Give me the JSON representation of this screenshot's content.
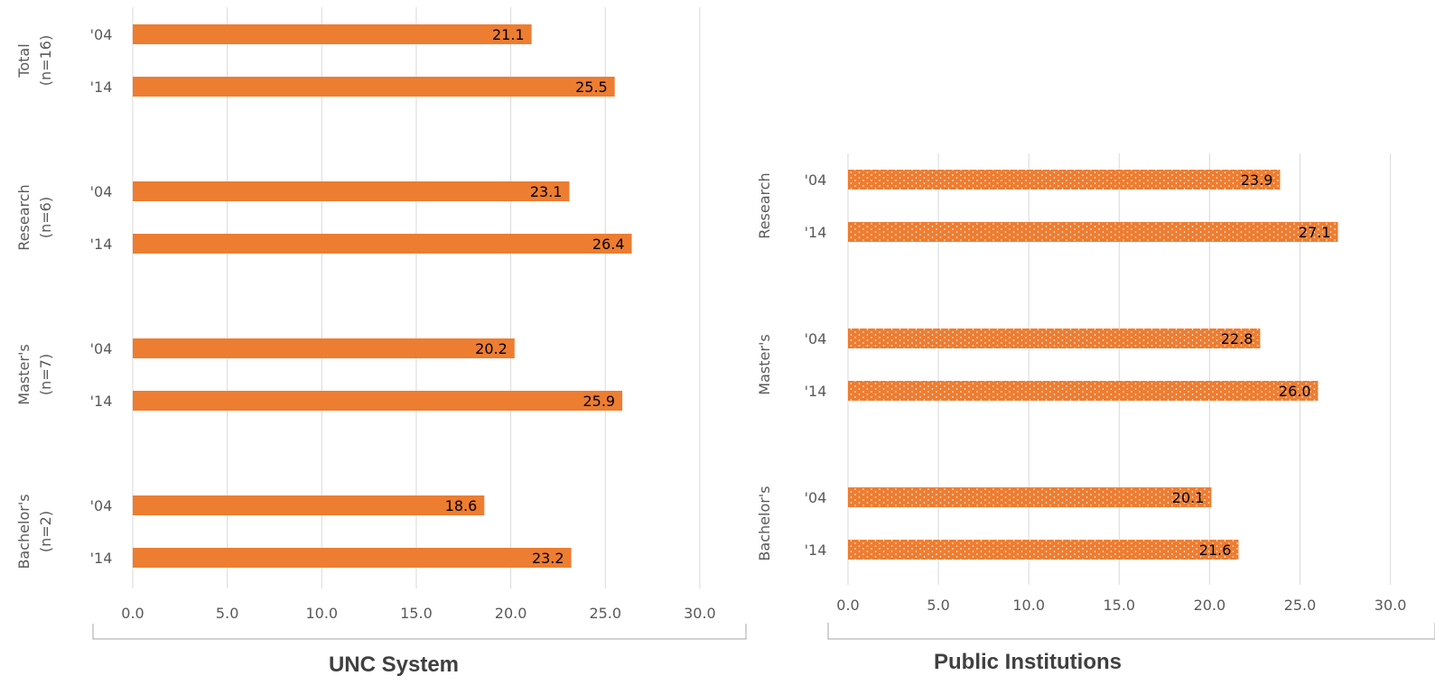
{
  "chart_data": [
    {
      "type": "bar",
      "orientation": "horizontal",
      "title": "UNC System",
      "xlim": [
        0,
        30
      ],
      "xticks": [
        "0.0",
        "5.0",
        "10.0",
        "15.0",
        "20.0",
        "25.0",
        "30.0"
      ],
      "grid": true,
      "groups": [
        {
          "label": [
            "Total",
            "(n=16)"
          ],
          "bars": [
            {
              "year": "'04",
              "value": 21.1,
              "label": "21.1"
            },
            {
              "year": "'14",
              "value": 25.5,
              "label": "25.5"
            }
          ]
        },
        {
          "label": [
            "Research",
            "(n=6)"
          ],
          "bars": [
            {
              "year": "'04",
              "value": 23.1,
              "label": "23.1"
            },
            {
              "year": "'14",
              "value": 26.4,
              "label": "26.4"
            }
          ]
        },
        {
          "label": [
            "Master's",
            "(n=7)"
          ],
          "bars": [
            {
              "year": "'04",
              "value": 20.2,
              "label": "20.2"
            },
            {
              "year": "'14",
              "value": 25.9,
              "label": "25.9"
            }
          ]
        },
        {
          "label": [
            "Bachelor's",
            "(n=2)"
          ],
          "bars": [
            {
              "year": "'04",
              "value": 18.6,
              "label": "18.6"
            },
            {
              "year": "'14",
              "value": 23.2,
              "label": "23.2"
            }
          ]
        }
      ],
      "bar_color": "#ED7D31",
      "pattern": "solid"
    },
    {
      "type": "bar",
      "orientation": "horizontal",
      "title": "Public Institutions",
      "xlim": [
        0,
        30
      ],
      "xticks": [
        "0.0",
        "5.0",
        "10.0",
        "15.0",
        "20.0",
        "25.0",
        "30.0"
      ],
      "grid": true,
      "groups": [
        {
          "label": [
            "Research"
          ],
          "bars": [
            {
              "year": "'04",
              "value": 23.9,
              "label": "23.9"
            },
            {
              "year": "'14",
              "value": 27.1,
              "label": "27.1"
            }
          ]
        },
        {
          "label": [
            "Master's"
          ],
          "bars": [
            {
              "year": "'04",
              "value": 22.8,
              "label": "22.8"
            },
            {
              "year": "'14",
              "value": 26.0,
              "label": "26.0"
            }
          ]
        },
        {
          "label": [
            "Bachelor's"
          ],
          "bars": [
            {
              "year": "'04",
              "value": 20.1,
              "label": "20.1"
            },
            {
              "year": "'14",
              "value": 21.6,
              "label": "21.6"
            }
          ]
        }
      ],
      "bar_color": "#ED7D31",
      "pattern": "dotted"
    }
  ]
}
